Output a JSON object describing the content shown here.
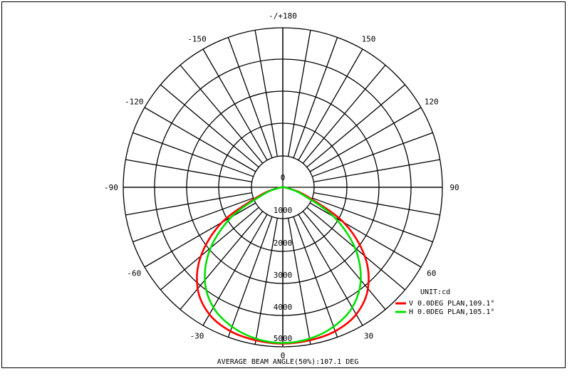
{
  "chart_data": {
    "type": "polar",
    "title": "",
    "angle_labels": [
      {
        "deg": 180,
        "text": "-/+180"
      },
      {
        "deg": -150,
        "text": "-150"
      },
      {
        "deg": 150,
        "text": "150"
      },
      {
        "deg": -120,
        "text": "-120"
      },
      {
        "deg": 120,
        "text": "120"
      },
      {
        "deg": -90,
        "text": "-90"
      },
      {
        "deg": 90,
        "text": "90"
      },
      {
        "deg": -60,
        "text": "-60"
      },
      {
        "deg": 60,
        "text": "60"
      },
      {
        "deg": -30,
        "text": "-30"
      },
      {
        "deg": 30,
        "text": "30"
      }
    ],
    "radial_labels": [
      "0",
      "1000",
      "2000",
      "3000",
      "4000",
      "5000",
      "0"
    ],
    "radial_max": 5000,
    "angle_step_deg": 10,
    "unit_label": "UNIT:cd",
    "footer": "AVERAGE BEAM ANGLE(50%):107.1 DEG",
    "grid": true,
    "legend_position": "bottom-right",
    "series": [
      {
        "name": "V 0.0DEG PLAN,109.1°",
        "color": "#ff0000",
        "angles": [
          -90,
          -80,
          -70,
          -60,
          -50,
          -40,
          -30,
          -20,
          -10,
          0,
          10,
          20,
          30,
          40,
          50,
          60,
          70,
          80,
          90
        ],
        "values": [
          0,
          180,
          780,
          2200,
          3350,
          4150,
          4600,
          4800,
          4870,
          4900,
          4870,
          4800,
          4600,
          4150,
          3350,
          2200,
          780,
          180,
          0
        ]
      },
      {
        "name": "H 0.0DEG PLAN,105.1°",
        "color": "#00e000",
        "angles": [
          -90,
          -80,
          -70,
          -60,
          -50,
          -40,
          -30,
          -20,
          -10,
          0,
          10,
          20,
          30,
          40,
          50,
          60,
          70,
          80,
          90
        ],
        "values": [
          0,
          150,
          650,
          1850,
          2950,
          3800,
          4350,
          4650,
          4820,
          4880,
          4820,
          4650,
          4350,
          3800,
          2950,
          1850,
          650,
          150,
          0
        ]
      }
    ]
  }
}
